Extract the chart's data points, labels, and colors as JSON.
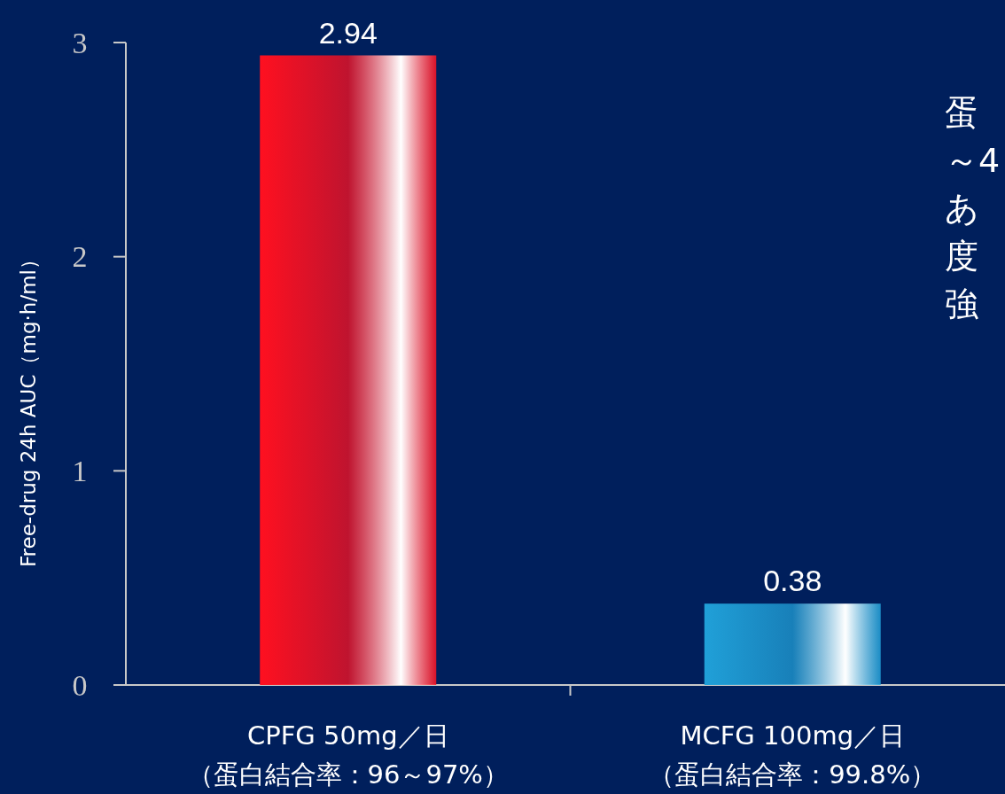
{
  "chart_data": {
    "type": "bar",
    "ylabel": "Free-drug 24h AUC（mg·h/ml）",
    "categories": [
      "CPFG 50mg／日（蛋白結合率：96～97%）",
      "MCFG 100mg／日（蛋白結合率：99.8%）"
    ],
    "values": [
      2.94,
      0.38
    ],
    "colors": [
      "#ff1020",
      "#20a0d8"
    ],
    "ylim": [
      0,
      3
    ],
    "yticks": [
      0,
      1,
      2,
      3
    ],
    "data_labels": true,
    "annotations": [
      "蛋",
      "～4",
      "あ",
      "度",
      "強"
    ]
  }
}
